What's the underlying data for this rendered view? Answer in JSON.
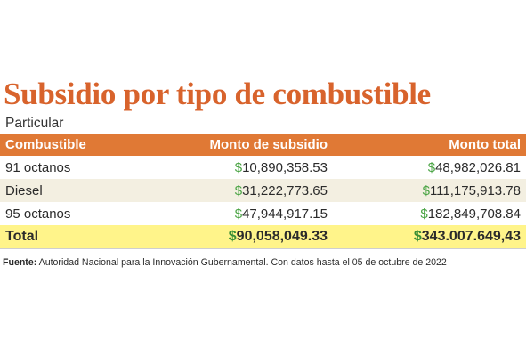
{
  "title": "Subsidio por tipo de combustible",
  "subtitle": "Particular",
  "table": {
    "headers": [
      "Combustible",
      "Monto de subsidio",
      "Monto total"
    ],
    "rows": [
      {
        "fuel": "91 octanos",
        "subsidy": "10,890,358.53",
        "total": "48,982,026.81"
      },
      {
        "fuel": "Diesel",
        "subsidy": "31,222,773.65",
        "total": "111,175,913.78"
      },
      {
        "fuel": "95 octanos",
        "subsidy": "47,944,917.15",
        "total": "182,849,708.84"
      }
    ],
    "total_row": {
      "label": "Total",
      "subsidy": "90,058,049.33",
      "total": "343.007.649,43"
    },
    "currency_symbol": "$"
  },
  "footnote": {
    "label": "Fuente:",
    "text": "Autoridad Nacional para la Innovación Gubernamental. Con datos hasta el 05 de octubre de 2022"
  },
  "colors": {
    "title": "#d8632c",
    "header_bg": "#e07935",
    "zebra_bg": "#f3efe1",
    "total_bg": "#fff48a",
    "currency": "#4aa444"
  }
}
